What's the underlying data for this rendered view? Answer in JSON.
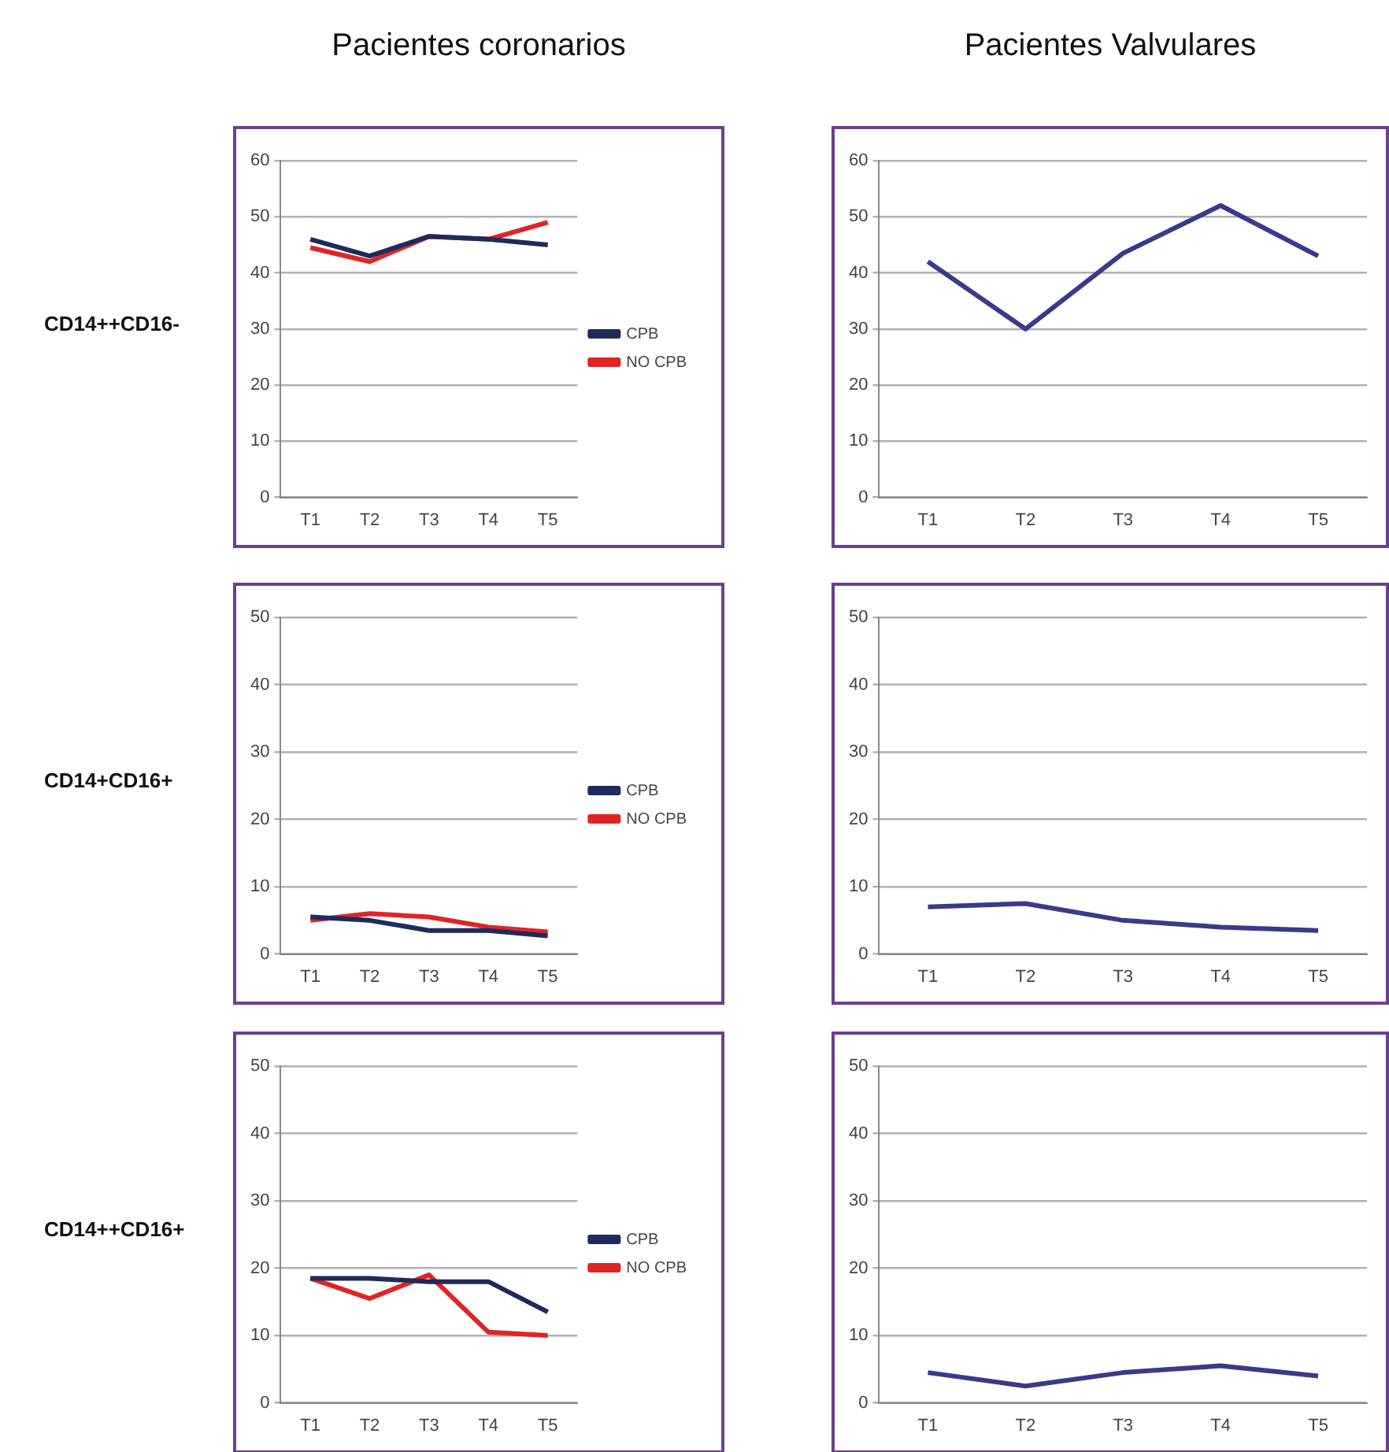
{
  "chart_data": [
    {
      "type": "line",
      "title": "Pacientes coronarios",
      "ylabel": "CD14++CD16-",
      "categories": [
        "T1",
        "T2",
        "T3",
        "T4",
        "T5"
      ],
      "ylim": [
        0,
        60
      ],
      "yticks": [
        0,
        10,
        20,
        30,
        40,
        50,
        60
      ],
      "grid": "y",
      "legend": "right",
      "marker": "none",
      "series": [
        {
          "name": "CPB",
          "color": "#1f2a5c",
          "values": [
            46,
            43,
            46.5,
            46,
            45
          ]
        },
        {
          "name": "NO CPB",
          "color": "#e02424",
          "values": [
            44.5,
            42,
            46.5,
            46,
            49
          ]
        }
      ]
    },
    {
      "type": "line",
      "title": "Pacientes Valvulares",
      "categories": [
        "T1",
        "T2",
        "T3",
        "T4",
        "T5"
      ],
      "ylim": [
        0,
        60
      ],
      "yticks": [
        0,
        10,
        20,
        30,
        40,
        50,
        60
      ],
      "grid": "y",
      "marker": "none",
      "series": [
        {
          "color": "#3a3a8c",
          "values": [
            42,
            30,
            43.5,
            52,
            43
          ]
        }
      ]
    },
    {
      "type": "line",
      "ylabel": "CD14+CD16+",
      "categories": [
        "T1",
        "T2",
        "T3",
        "T4",
        "T5"
      ],
      "ylim": [
        0,
        50
      ],
      "yticks": [
        0,
        10,
        20,
        30,
        40,
        50
      ],
      "grid": "y",
      "legend": "right",
      "marker": "none",
      "series": [
        {
          "name": "CPB",
          "color": "#1f2a5c",
          "values": [
            5.5,
            5,
            3.5,
            3.5,
            2.7
          ]
        },
        {
          "name": "NO CPB",
          "color": "#e02424",
          "values": [
            5,
            6,
            5.5,
            4,
            3.3
          ]
        }
      ]
    },
    {
      "type": "line",
      "categories": [
        "T1",
        "T2",
        "T3",
        "T4",
        "T5"
      ],
      "ylim": [
        0,
        50
      ],
      "yticks": [
        0,
        10,
        20,
        30,
        40,
        50
      ],
      "grid": "y",
      "marker": "none",
      "series": [
        {
          "color": "#3a3a8c",
          "values": [
            7,
            7.5,
            5,
            4,
            3.5
          ]
        }
      ]
    },
    {
      "type": "line",
      "ylabel": "CD14++CD16+",
      "categories": [
        "T1",
        "T2",
        "T3",
        "T4",
        "T5"
      ],
      "ylim": [
        0,
        50
      ],
      "yticks": [
        0,
        10,
        20,
        30,
        40,
        50
      ],
      "grid": "y",
      "legend": "right",
      "marker": "none",
      "series": [
        {
          "name": "CPB",
          "color": "#1f2a5c",
          "values": [
            18.5,
            18.5,
            18,
            18,
            13.5
          ]
        },
        {
          "name": "NO CPB",
          "color": "#e02424",
          "values": [
            18.5,
            15.5,
            19,
            10.5,
            10
          ]
        }
      ]
    },
    {
      "type": "line",
      "categories": [
        "T1",
        "T2",
        "T3",
        "T4",
        "T5"
      ],
      "ylim": [
        0,
        50
      ],
      "yticks": [
        0,
        10,
        20,
        30,
        40,
        50
      ],
      "grid": "y",
      "marker": "none",
      "series": [
        {
          "color": "#3a3a8c",
          "values": [
            4.5,
            2.5,
            4.5,
            5.5,
            4
          ]
        }
      ]
    }
  ]
}
